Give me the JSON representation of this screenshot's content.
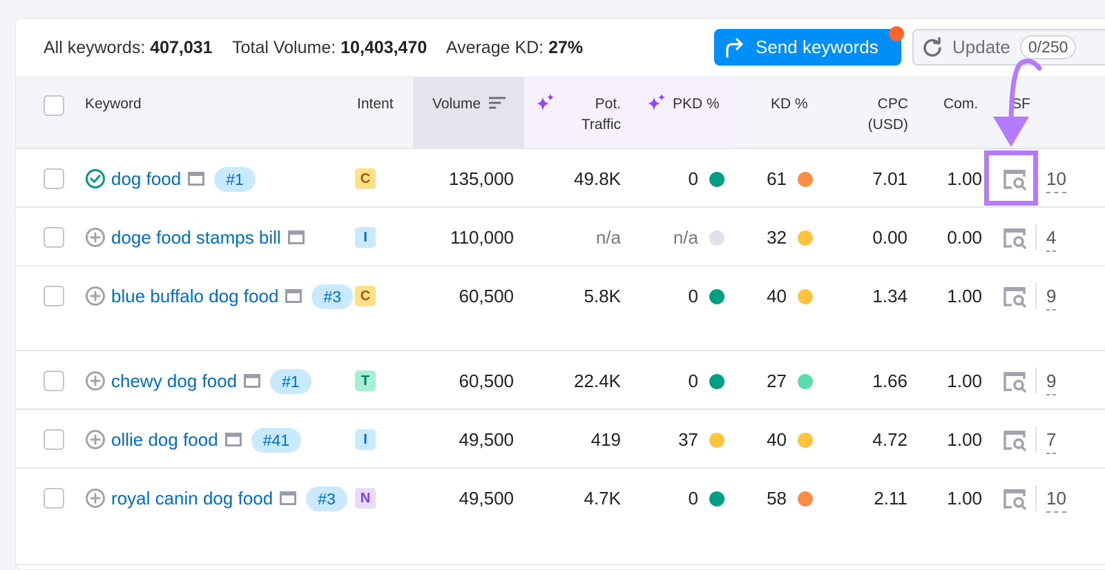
{
  "summary": {
    "all_keywords_label": "All keywords:",
    "all_keywords": "407,031",
    "total_volume_label": "Total Volume:",
    "total_volume": "10,403,470",
    "avg_kd_label": "Average KD:",
    "avg_kd": "27%"
  },
  "toolbar": {
    "send_label": "Send keywords",
    "update_label": "Update",
    "update_count": "0/250"
  },
  "colors": {
    "accent": "#008ff8",
    "notification": "#ff642d",
    "highlight": "#b57bff",
    "green": "#009f81",
    "orange": "#ff8c43",
    "yellow": "#ffc43d",
    "light_green": "#59ddaa",
    "gray": "#e0e1e9"
  },
  "columns": {
    "keyword": "Keyword",
    "intent": "Intent",
    "volume": "Volume",
    "pot_traffic": "Pot. Traffic",
    "pkd": "PKD %",
    "kd": "KD %",
    "cpc": "CPC (USD)",
    "com": "Com.",
    "sf": "SF"
  },
  "rows": [
    {
      "keyword": "dog food",
      "status": "check",
      "position": "#1",
      "intent": "C",
      "volume": "135,000",
      "pot_traffic": "49.8K",
      "pkd": "0",
      "pkd_color": "#009f81",
      "kd": "61",
      "kd_color": "#ff8c43",
      "cpc": "7.01",
      "com": "1.00",
      "sf": "10",
      "highlighted": true
    },
    {
      "keyword": "doge food stamps bill",
      "status": "add",
      "position": "",
      "intent": "I",
      "volume": "110,000",
      "pot_traffic": "n/a",
      "pkd": "n/a",
      "pkd_color": "#e0e1e9",
      "kd": "32",
      "kd_color": "#ffc43d",
      "cpc": "0.00",
      "com": "0.00",
      "sf": "4"
    },
    {
      "keyword": "blue buffalo dog food",
      "status": "add",
      "position": "#3",
      "intent": "C",
      "volume": "60,500",
      "pot_traffic": "5.8K",
      "pkd": "0",
      "pkd_color": "#009f81",
      "kd": "40",
      "kd_color": "#ffc43d",
      "cpc": "1.34",
      "com": "1.00",
      "sf": "9"
    },
    {
      "keyword": "chewy dog food",
      "status": "add",
      "position": "#1",
      "intent": "T",
      "volume": "60,500",
      "pot_traffic": "22.4K",
      "pkd": "0",
      "pkd_color": "#009f81",
      "kd": "27",
      "kd_color": "#59ddaa",
      "cpc": "1.66",
      "com": "1.00",
      "sf": "9"
    },
    {
      "keyword": "ollie dog food",
      "status": "add",
      "position": "#41",
      "intent": "I",
      "volume": "49,500",
      "pot_traffic": "419",
      "pkd": "37",
      "pkd_color": "#ffc43d",
      "kd": "40",
      "kd_color": "#ffc43d",
      "cpc": "4.72",
      "com": "1.00",
      "sf": "7"
    },
    {
      "keyword": "royal canin dog food",
      "status": "add",
      "position": "#3",
      "intent": "N",
      "volume": "49,500",
      "pot_traffic": "4.7K",
      "pkd": "0",
      "pkd_color": "#009f81",
      "kd": "58",
      "kd_color": "#ff8c43",
      "cpc": "2.11",
      "com": "1.00",
      "sf": "10"
    }
  ]
}
